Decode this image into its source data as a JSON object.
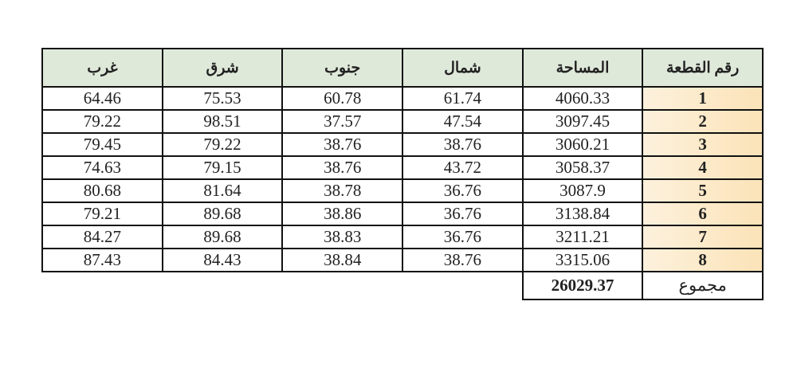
{
  "headers": [
    "رقم القطعة",
    "المساحة",
    "شمال",
    "جنوب",
    "شرق",
    "غرب"
  ],
  "rows": [
    [
      "1",
      "4060.33",
      "61.74",
      "60.78",
      "75.53",
      "64.46"
    ],
    [
      "2",
      "3097.45",
      "47.54",
      "37.57",
      "98.51",
      "79.22"
    ],
    [
      "3",
      "3060.21",
      "38.76",
      "38.76",
      "79.22",
      "79.45"
    ],
    [
      "4",
      "3058.37",
      "43.72",
      "38.76",
      "79.15",
      "74.63"
    ],
    [
      "5",
      "3087.9",
      "36.76",
      "38.78",
      "81.64",
      "80.68"
    ],
    [
      "6",
      "3138.84",
      "36.76",
      "38.86",
      "89.68",
      "79.21"
    ],
    [
      "7",
      "3211.21",
      "36.76",
      "38.83",
      "89.68",
      "84.27"
    ],
    [
      "8",
      "3315.06",
      "38.76",
      "38.84",
      "84.43",
      "87.43"
    ]
  ],
  "total": {
    "label": "مجموع",
    "value": "26029.37"
  },
  "colors": {
    "header_bg": "#dfe9da",
    "plot_number_bg": "#fbe3b8"
  }
}
